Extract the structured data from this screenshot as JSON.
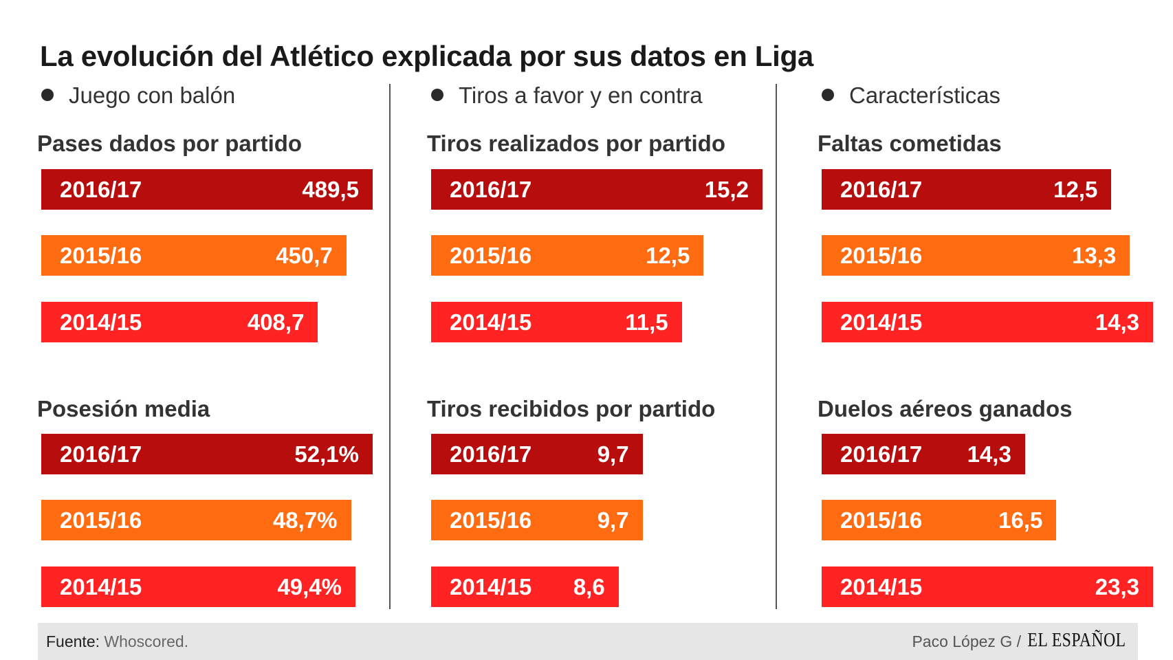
{
  "title": "La evolución del Atlético explicada por sus datos en Liga",
  "colors": {
    "2016/17": "#b80d0d",
    "2015/16": "#ff6b10",
    "2014/15": "#ff2323"
  },
  "chart_data": [
    {
      "type": "bar",
      "section": "Juego con balón",
      "title": "Pases dados por partido",
      "categories": [
        "2016/17",
        "2015/16",
        "2014/15"
      ],
      "labels": [
        "489,5",
        "450,7",
        "408,7"
      ],
      "values": [
        489.5,
        450.7,
        408.7
      ],
      "orientation": "horizontal"
    },
    {
      "type": "bar",
      "section": "Juego con balón",
      "title": "Posesión media",
      "categories": [
        "2016/17",
        "2015/16",
        "2014/15"
      ],
      "labels": [
        "52,1%",
        "48,7%",
        "49,4%"
      ],
      "values": [
        52.1,
        48.7,
        49.4
      ],
      "orientation": "horizontal"
    },
    {
      "type": "bar",
      "section": "Tiros a favor y en contra",
      "title": "Tiros realizados por partido",
      "categories": [
        "2016/17",
        "2015/16",
        "2014/15"
      ],
      "labels": [
        "15,2",
        "12,5",
        "11,5"
      ],
      "values": [
        15.2,
        12.5,
        11.5
      ],
      "orientation": "horizontal",
      "shared_scale": true
    },
    {
      "type": "bar",
      "section": "Tiros a favor y en contra",
      "title": "Tiros recibidos por partido",
      "categories": [
        "2016/17",
        "2015/16",
        "2014/15"
      ],
      "labels": [
        "9,7",
        "9,7",
        "8,6"
      ],
      "values": [
        9.7,
        9.7,
        8.6
      ],
      "orientation": "horizontal",
      "shared_scale": true
    },
    {
      "type": "bar",
      "section": "Características",
      "title": "Faltas cometidas",
      "categories": [
        "2016/17",
        "2015/16",
        "2014/15"
      ],
      "labels": [
        "12,5",
        "13,3",
        "14,3"
      ],
      "values": [
        12.5,
        13.3,
        14.3
      ],
      "orientation": "horizontal"
    },
    {
      "type": "bar",
      "section": "Características",
      "title": "Duelos aéreos ganados",
      "categories": [
        "2016/17",
        "2015/16",
        "2014/15"
      ],
      "labels": [
        "14,3",
        "16,5",
        "23,3"
      ],
      "values": [
        14.3,
        16.5,
        23.3
      ],
      "orientation": "horizontal"
    }
  ],
  "sections": [
    "Juego con balón",
    "Tiros a favor y en contra",
    "Características"
  ],
  "footer": {
    "source_label": "Fuente:",
    "source_value": "Whoscored.",
    "author": "Paco López G  /",
    "logo": "EL ESPAÑOL"
  }
}
